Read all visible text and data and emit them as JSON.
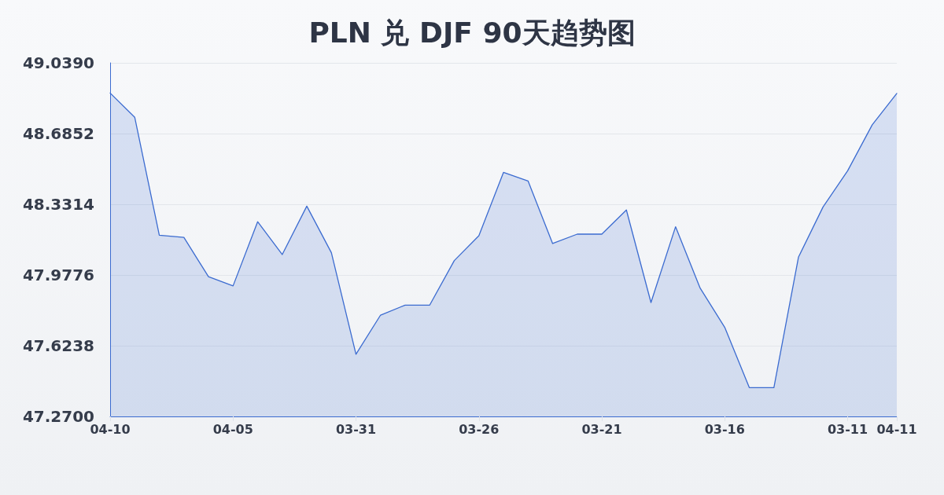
{
  "chart_data": {
    "type": "area",
    "title": "PLN 兑 DJF 90天趋势图",
    "categories": [
      "04-10",
      null,
      null,
      null,
      null,
      "04-05",
      null,
      null,
      null,
      null,
      "03-31",
      null,
      null,
      null,
      null,
      "03-26",
      null,
      null,
      null,
      null,
      "03-21",
      null,
      null,
      null,
      null,
      "03-16",
      null,
      null,
      null,
      null,
      "03-11",
      null,
      "04-11"
    ],
    "values": [
      48.888,
      48.767,
      48.177,
      48.166,
      47.969,
      47.923,
      48.244,
      48.08,
      48.322,
      48.089,
      47.581,
      47.777,
      47.827,
      47.827,
      48.05,
      48.174,
      48.491,
      48.448,
      48.135,
      48.182,
      48.182,
      48.303,
      47.84,
      48.219,
      47.912,
      47.716,
      47.414,
      47.414,
      48.067,
      48.318,
      48.499,
      48.729,
      48.886
    ],
    "color": "#3b6bd0",
    "ylim": [
      47.27,
      49.039
    ],
    "yticks": [
      {
        "value": 47.27,
        "label": "47.2700"
      },
      47.6238,
      47.9776,
      48.3314,
      48.6852,
      {
        "value": 49.039,
        "label": "49.0390"
      }
    ],
    "grid": "y",
    "marker": "none"
  }
}
